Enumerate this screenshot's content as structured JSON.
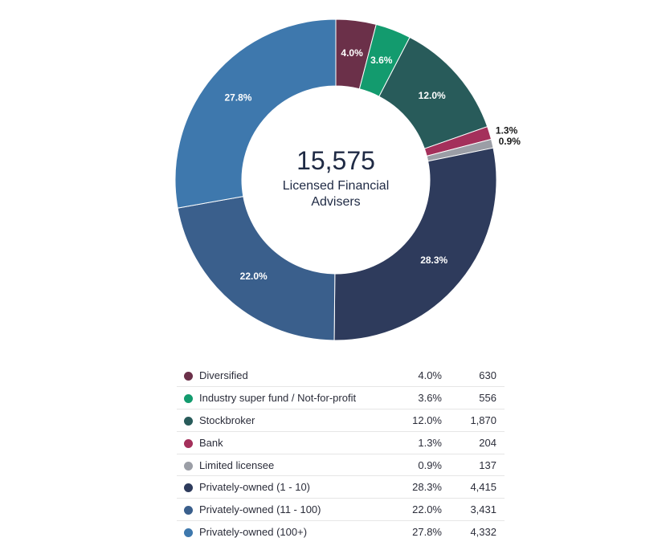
{
  "chart_data": {
    "type": "pie",
    "subtype": "donut",
    "center": {
      "total": "15,575",
      "label_line1": "Licensed Financial",
      "label_line2": "Advisers"
    },
    "slices": [
      {
        "name": "Diversified",
        "percent": 4.0,
        "percent_label": "4.0%",
        "value": 630,
        "value_label": "630",
        "color": "#6b3049",
        "label_color": "#ffffff",
        "label_outside": false
      },
      {
        "name": "Industry super fund / Not-for-profit",
        "percent": 3.6,
        "percent_label": "3.6%",
        "value": 556,
        "value_label": "556",
        "color": "#139b6e",
        "label_color": "#ffffff",
        "label_outside": false
      },
      {
        "name": "Stockbroker",
        "percent": 12.0,
        "percent_label": "12.0%",
        "value": 1870,
        "value_label": "1,870",
        "color": "#285b5a",
        "label_color": "#ffffff",
        "label_outside": false
      },
      {
        "name": "Bank",
        "percent": 1.3,
        "percent_label": "1.3%",
        "value": 204,
        "value_label": "204",
        "color": "#a4305b",
        "label_color": "#1a1a1a",
        "label_outside": true
      },
      {
        "name": "Limited licensee",
        "percent": 0.9,
        "percent_label": "0.9%",
        "value": 137,
        "value_label": "137",
        "color": "#9b9ea6",
        "label_color": "#1a1a1a",
        "label_outside": true
      },
      {
        "name": "Privately-owned (1 - 10)",
        "percent": 28.3,
        "percent_label": "28.3%",
        "value": 4415,
        "value_label": "4,415",
        "color": "#2e3b5c",
        "label_color": "#ffffff",
        "label_outside": false
      },
      {
        "name": "Privately-owned (11 - 100)",
        "percent": 22.0,
        "percent_label": "22.0%",
        "value": 3431,
        "value_label": "3,431",
        "color": "#3a5f8c",
        "label_color": "#ffffff",
        "label_outside": false
      },
      {
        "name": "Privately-owned (100+)",
        "percent": 27.8,
        "percent_label": "27.8%",
        "value": 4332,
        "value_label": "4,332",
        "color": "#3e78ad",
        "label_color": "#ffffff",
        "label_outside": false
      }
    ],
    "legend_placement": "bottom-table"
  }
}
